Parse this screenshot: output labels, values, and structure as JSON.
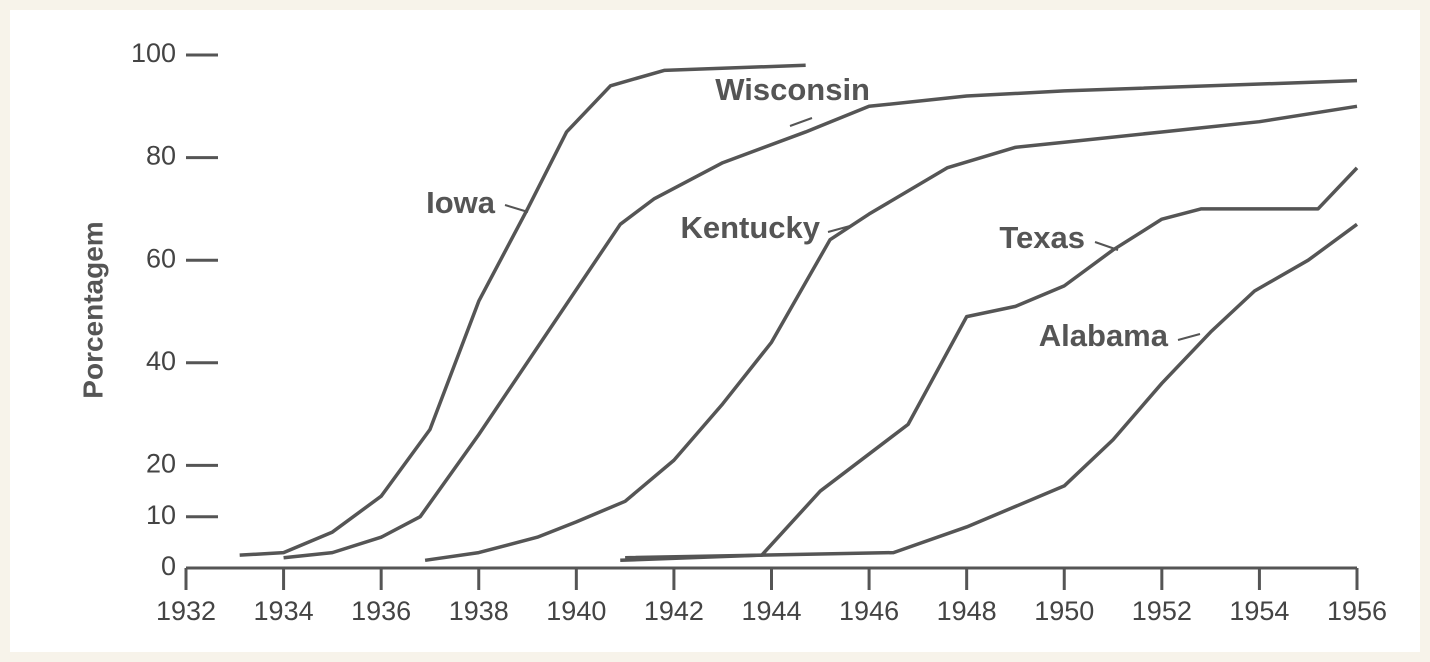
{
  "chart_data": {
    "type": "line",
    "ylabel": "Porcentagem",
    "xlim": [
      1932,
      1956
    ],
    "xticks": [
      1932,
      1934,
      1936,
      1938,
      1940,
      1942,
      1944,
      1946,
      1948,
      1950,
      1952,
      1954,
      1956
    ],
    "ylim": [
      0,
      100
    ],
    "yticks": [
      0,
      10,
      20,
      40,
      60,
      80,
      100
    ],
    "grid": false,
    "series": [
      {
        "name": "Iowa",
        "color": "#555555",
        "x": [
          1933.1,
          1934,
          1935,
          1936,
          1937,
          1938,
          1939,
          1939.8,
          1940.7,
          1941.8,
          1944.7
        ],
        "values": [
          2.5,
          3,
          7,
          14,
          27,
          52,
          70,
          85,
          94,
          97,
          98
        ]
      },
      {
        "name": "Wisconsin",
        "color": "#555555",
        "x": [
          1934,
          1935,
          1936,
          1936.8,
          1938,
          1940.9,
          1941.6,
          1943,
          1944.7,
          1946,
          1948,
          1950,
          1956
        ],
        "values": [
          2,
          3,
          6,
          10,
          26,
          67,
          72,
          79,
          85,
          90,
          92,
          93,
          95
        ]
      },
      {
        "name": "Kentucky",
        "color": "#555555",
        "x": [
          1936.9,
          1938,
          1939.2,
          1940,
          1941,
          1942,
          1943,
          1944,
          1945.2,
          1946,
          1947.6,
          1949,
          1950,
          1952,
          1954,
          1956
        ],
        "values": [
          1.5,
          3,
          6,
          9,
          13,
          21,
          32,
          44,
          64,
          69,
          78,
          82,
          83,
          85,
          87,
          90
        ]
      },
      {
        "name": "Texas",
        "color": "#555555",
        "x": [
          1940.9,
          1943.8,
          1945,
          1946.8,
          1948,
          1949,
          1950,
          1951,
          1952,
          1952.8,
          1954,
          1955.2,
          1956
        ],
        "values": [
          1.5,
          2.5,
          15,
          28,
          49,
          51,
          55,
          62,
          68,
          70,
          70,
          70,
          78
        ]
      },
      {
        "name": "Alabama",
        "color": "#555555",
        "x": [
          1941,
          1946.5,
          1948,
          1950,
          1951,
          1952,
          1953,
          1953.9,
          1955,
          1956
        ],
        "values": [
          2,
          3,
          8,
          16,
          25,
          36,
          46,
          54,
          60,
          67
        ]
      }
    ]
  }
}
